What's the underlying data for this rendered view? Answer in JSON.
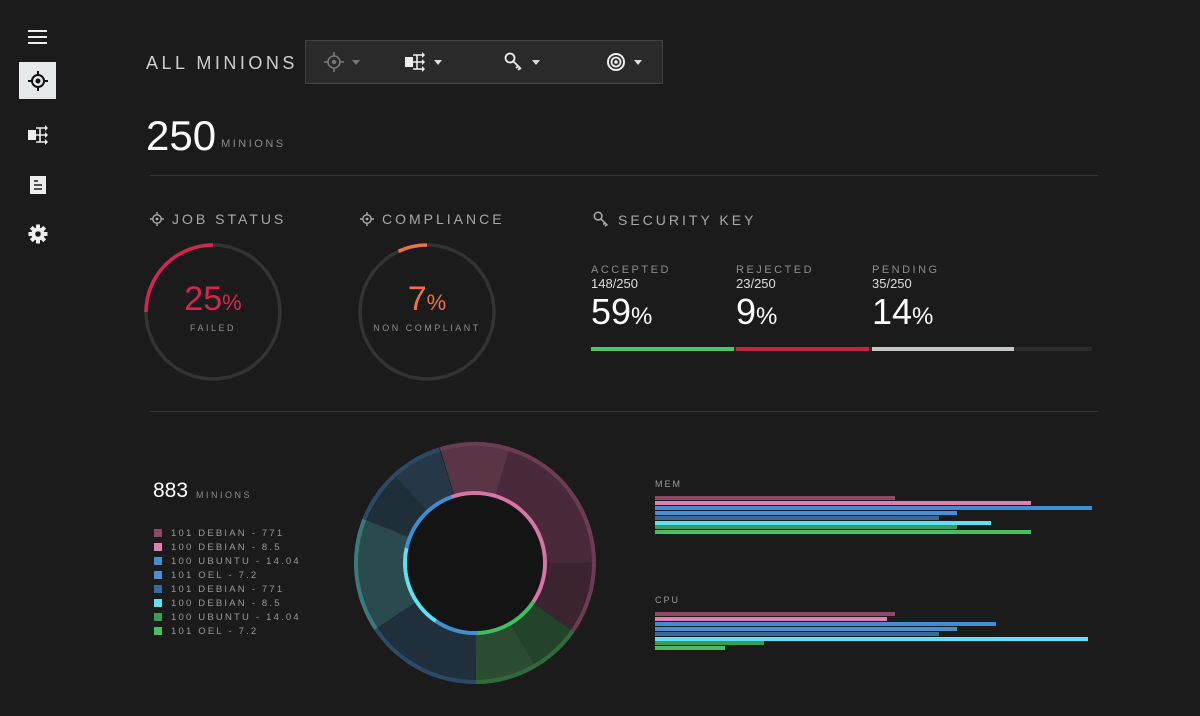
{
  "sidebar": {
    "items": [
      {
        "icon": "menu-icon",
        "active": false
      },
      {
        "icon": "crosshair-icon",
        "active": true
      },
      {
        "icon": "hierarchy-icon",
        "active": false
      },
      {
        "icon": "document-icon",
        "active": false
      },
      {
        "icon": "gear-icon",
        "active": false
      }
    ]
  },
  "header": {
    "title": "ALL MINIONS",
    "toolbar": [
      {
        "icon": "crosshair-icon",
        "dimmed": true
      },
      {
        "icon": "hierarchy-icon",
        "dimmed": false
      },
      {
        "icon": "key-icon",
        "dimmed": false
      },
      {
        "icon": "target-icon",
        "dimmed": false
      }
    ]
  },
  "summary": {
    "count": "250",
    "unit": "MINIONS"
  },
  "job_status": {
    "title": "JOB STATUS",
    "value": "25",
    "pct_sign": "%",
    "label": "FAILED",
    "fraction": 0.25,
    "color": "#d6264f"
  },
  "compliance": {
    "title": "COMPLIANCE",
    "value": "7",
    "pct_sign": "%",
    "label": "NON COMPLIANT",
    "fraction": 0.07,
    "color": "#f0704a"
  },
  "security_key": {
    "title": "SECURITY KEY",
    "items": [
      {
        "label": "ACCEPTED",
        "fraction": "148/250",
        "value": "59",
        "pct_sign": "%",
        "color": "#4cc46a"
      },
      {
        "label": "REJECTED",
        "fraction": "23/250",
        "value": "9",
        "pct_sign": "%",
        "color": "#c8223f"
      },
      {
        "label": "PENDING",
        "fraction": "35/250",
        "value": "14",
        "pct_sign": "%",
        "color": "#c4c8c0"
      }
    ]
  },
  "distribution": {
    "count": "883",
    "unit": "MINIONS",
    "legend": [
      {
        "label": "101 DEBIAN - 771",
        "color": "#8a4a68"
      },
      {
        "label": "100 DEBIAN - 8.5",
        "color": "#e07fb0"
      },
      {
        "label": "100 UBUNTU - 14.04",
        "color": "#3f8ed2"
      },
      {
        "label": "101 OEL  - 7.2",
        "color": "#4a90d0"
      },
      {
        "label": "101 DEBIAN - 771",
        "color": "#3a6a98"
      },
      {
        "label": "100 DEBIAN - 8.5",
        "color": "#5ee2f2"
      },
      {
        "label": "100 UBUNTU - 14.04",
        "color": "#3a9c52"
      },
      {
        "label": "101 OEL  - 7.2",
        "color": "#46c062"
      }
    ]
  },
  "chart_data": [
    {
      "type": "pie",
      "variant": "donut",
      "values": [
        9.4,
        20.3,
        9.7,
        6.9,
        8.3,
        15.8,
        15.3,
        7.2,
        7.0
      ],
      "colors": [
        "#5a3546",
        "#4a2a3a",
        "#3b2330",
        "#23432a",
        "#2b4c30",
        "#1f2f3c",
        "#2a4a4e",
        "#1f2f3a",
        "#263848"
      ],
      "edge_colors": [
        "#6b3d55",
        "#6b3d55",
        "#6b3d55",
        "#2f6b3a",
        "#2f6b3a",
        "#2b4a68",
        "#3a7a7e",
        "#2b4a68",
        "#2b4a68"
      ],
      "inner_values": [
        40,
        15,
        10,
        19,
        16
      ],
      "inner_colors": [
        "#d874a8",
        "#3fbf5e",
        "#3f8ed2",
        "#5ee2f2",
        "#3f8ed2"
      ]
    },
    {
      "type": "bar",
      "orientation": "horizontal",
      "title": "MEM",
      "xlim": [
        0,
        100
      ],
      "values": [
        55,
        86,
        100,
        69,
        65,
        77,
        69,
        86
      ],
      "colors": [
        "#8a4a68",
        "#e07fb0",
        "#3f8ed2",
        "#4a90d0",
        "#3a6a98",
        "#5ee2f2",
        "#3a9c52",
        "#46c062"
      ]
    },
    {
      "type": "bar",
      "orientation": "horizontal",
      "title": "CPU",
      "xlim": [
        0,
        100
      ],
      "values": [
        55,
        53,
        78,
        69,
        65,
        99,
        25,
        16
      ],
      "colors": [
        "#8a4a68",
        "#e07fb0",
        "#3f8ed2",
        "#4a90d0",
        "#3a6a98",
        "#5ee2f2",
        "#3a9c52",
        "#46c062"
      ]
    }
  ]
}
